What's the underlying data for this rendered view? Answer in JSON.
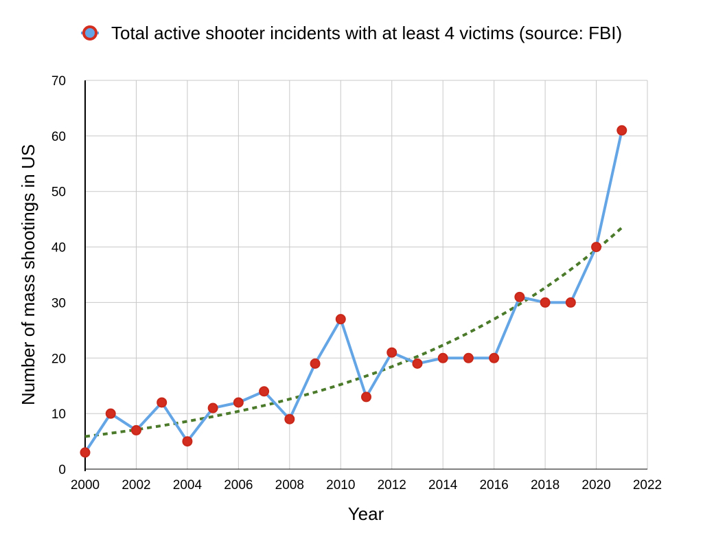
{
  "chart_data": {
    "type": "line",
    "title": "",
    "xlabel": "Year",
    "ylabel": "Number of mass shootings in US",
    "xlim": [
      2000,
      2022
    ],
    "ylim": [
      0,
      70
    ],
    "x_ticks": [
      "2000",
      "2002",
      "2004",
      "2006",
      "2008",
      "2010",
      "2012",
      "2014",
      "2016",
      "2018",
      "2020",
      "2022"
    ],
    "y_ticks": [
      "0",
      "10",
      "20",
      "30",
      "40",
      "50",
      "60",
      "70"
    ],
    "grid": true,
    "legend_position": "top",
    "series": [
      {
        "name": "Total active shooter incidents with at least 4 victims (source: FBI)",
        "line_color": "#64a5e6",
        "marker_color": "#d22d1e",
        "x": [
          2000,
          2001,
          2002,
          2003,
          2004,
          2005,
          2006,
          2007,
          2008,
          2009,
          2010,
          2011,
          2012,
          2013,
          2014,
          2015,
          2016,
          2017,
          2018,
          2019,
          2020,
          2021
        ],
        "y": [
          3,
          10,
          7,
          12,
          5,
          11,
          12,
          14,
          9,
          19,
          27,
          13,
          21,
          19,
          20,
          20,
          20,
          31,
          30,
          30,
          40,
          61
        ]
      }
    ],
    "trendline": {
      "type": "exponential",
      "style": "dotted",
      "color": "#4a7a2a",
      "x_range": [
        2000,
        2021
      ]
    }
  }
}
